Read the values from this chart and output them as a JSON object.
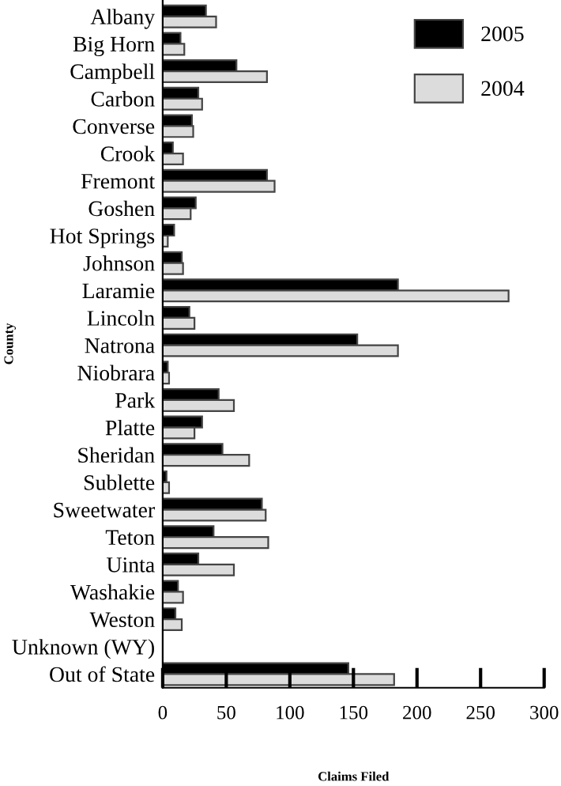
{
  "chart_data": {
    "type": "bar",
    "orientation": "horizontal",
    "xlabel": "Claims Filed",
    "ylabel": "County",
    "categories": [
      "Albany",
      "Big Horn",
      "Campbell",
      "Carbon",
      "Converse",
      "Crook",
      "Fremont",
      "Goshen",
      "Hot Springs",
      "Johnson",
      "Laramie",
      "Lincoln",
      "Natrona",
      "Niobrara",
      "Park",
      "Platte",
      "Sheridan",
      "Sublette",
      "Sweetwater",
      "Teton",
      "Uinta",
      "Washakie",
      "Weston",
      "Unknown (WY)",
      "Out of State"
    ],
    "series": [
      {
        "name": "2005",
        "color": "#000000",
        "values": [
          34,
          14,
          58,
          28,
          23,
          8,
          82,
          26,
          9,
          15,
          185,
          21,
          153,
          4,
          44,
          31,
          47,
          3,
          78,
          40,
          28,
          12,
          10,
          0,
          146
        ]
      },
      {
        "name": "2004",
        "color": "#dcdcdc",
        "values": [
          42,
          17,
          82,
          31,
          24,
          16,
          88,
          22,
          4,
          16,
          272,
          25,
          185,
          5,
          56,
          25,
          68,
          5,
          81,
          83,
          56,
          16,
          15,
          0,
          182
        ]
      }
    ],
    "xlim": [
      0,
      300
    ],
    "xticks": [
      0,
      50,
      100,
      150,
      200,
      250,
      300
    ],
    "grid": false,
    "legend": "top right"
  }
}
